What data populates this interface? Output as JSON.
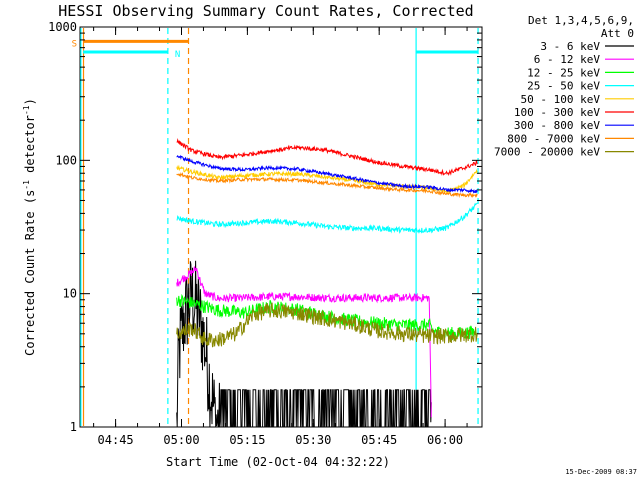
{
  "chart_data": {
    "type": "line",
    "title": "HESSI Observing Summary Count Rates, Corrected",
    "xlabel": "Start Time (02-Oct-04 04:32:22)",
    "ylabel_main": "Corrected Count Rate (s",
    "ylabel_sup1": "-1",
    "ylabel_mid": " detector",
    "ylabel_sup2": "-1",
    "ylabel_end": ")",
    "yscale": "log",
    "ylim": [
      1,
      1000
    ],
    "xlim_minutes": [
      4.5,
      96
    ],
    "x_start": "04:32:22",
    "x_ticks": [
      {
        "m": 12.6,
        "label": "04:45"
      },
      {
        "m": 27.6,
        "label": "05:00"
      },
      {
        "m": 42.6,
        "label": "05:15"
      },
      {
        "m": 57.6,
        "label": "05:30"
      },
      {
        "m": 72.6,
        "label": "05:45"
      },
      {
        "m": 87.6,
        "label": "06:00"
      }
    ],
    "y_ticks": [
      {
        "v": 1,
        "label": "1"
      },
      {
        "v": 10,
        "label": "10"
      },
      {
        "v": 100,
        "label": "100"
      },
      {
        "v": 1000,
        "label": "1000"
      }
    ],
    "legend_header": [
      "Det 1,3,4,5,6,9,",
      "Att 0"
    ],
    "legend_position": "right",
    "series": [
      {
        "name": "3 - 6 keV",
        "color": "#000000",
        "points": [
          [
            26.5,
            1.0
          ],
          [
            27,
            3.5
          ],
          [
            28,
            6
          ],
          [
            29,
            8
          ],
          [
            30,
            9.5
          ],
          [
            31,
            8
          ],
          [
            32,
            6
          ],
          [
            33,
            4
          ],
          [
            34,
            2.2
          ],
          [
            35,
            1.3
          ],
          [
            36,
            1.0
          ],
          [
            39,
            1.5
          ],
          [
            42,
            1.6
          ],
          [
            48,
            1.6
          ],
          [
            54,
            1.6
          ],
          [
            60,
            1.6
          ],
          [
            66,
            1.6
          ],
          [
            72,
            1.6
          ],
          [
            78,
            1.6
          ],
          [
            84,
            1.6
          ],
          [
            84.5,
            1.0
          ]
        ],
        "noise": 0.35
      },
      {
        "name": "6 - 12 keV",
        "color": "#ff00ff",
        "points": [
          [
            26.5,
            12
          ],
          [
            28,
            13
          ],
          [
            30,
            14.5
          ],
          [
            31,
            15.5
          ],
          [
            32,
            12
          ],
          [
            33,
            10
          ],
          [
            36,
            9.2
          ],
          [
            42,
            9.3
          ],
          [
            48,
            9.5
          ],
          [
            54,
            9.5
          ],
          [
            60,
            9.3
          ],
          [
            66,
            9.3
          ],
          [
            72,
            9.3
          ],
          [
            78,
            9.3
          ],
          [
            84,
            9.3
          ],
          [
            84.5,
            1.0
          ]
        ],
        "noise": 0.03
      },
      {
        "name": "12 - 25 keV",
        "color": "#00ff00",
        "points": [
          [
            26.5,
            9
          ],
          [
            30,
            8.5
          ],
          [
            36,
            7.5
          ],
          [
            42,
            7.2
          ],
          [
            48,
            8.0
          ],
          [
            54,
            7.6
          ],
          [
            60,
            6.8
          ],
          [
            66,
            6.3
          ],
          [
            72,
            6.0
          ],
          [
            78,
            5.8
          ],
          [
            84,
            5.8
          ],
          [
            85,
            5.2
          ],
          [
            90,
            5.0
          ],
          [
            95,
            5.2
          ]
        ],
        "noise": 0.05
      },
      {
        "name": "25 - 50 keV",
        "color": "#00ffff",
        "points": [
          [
            26.5,
            37
          ],
          [
            30,
            35
          ],
          [
            36,
            33
          ],
          [
            42,
            34
          ],
          [
            48,
            35
          ],
          [
            54,
            34
          ],
          [
            60,
            32
          ],
          [
            66,
            31
          ],
          [
            72,
            31
          ],
          [
            78,
            30
          ],
          [
            84,
            30
          ],
          [
            88,
            31
          ],
          [
            92,
            38
          ],
          [
            95,
            47
          ]
        ],
        "noise": 0.02
      },
      {
        "name": "50 - 100 keV",
        "color": "#ffcc00",
        "points": [
          [
            26.5,
            88
          ],
          [
            30,
            82
          ],
          [
            36,
            74
          ],
          [
            42,
            77
          ],
          [
            48,
            79
          ],
          [
            54,
            79
          ],
          [
            60,
            75
          ],
          [
            66,
            71
          ],
          [
            72,
            66
          ],
          [
            78,
            64
          ],
          [
            84,
            62
          ],
          [
            88,
            58
          ],
          [
            92,
            65
          ],
          [
            95,
            85
          ]
        ],
        "noise": 0.015
      },
      {
        "name": "100 - 300 keV",
        "color": "#ff0000",
        "points": [
          [
            26.5,
            140
          ],
          [
            30,
            118
          ],
          [
            36,
            105
          ],
          [
            42,
            110
          ],
          [
            48,
            118
          ],
          [
            54,
            125
          ],
          [
            60,
            120
          ],
          [
            66,
            108
          ],
          [
            72,
            97
          ],
          [
            78,
            90
          ],
          [
            84,
            85
          ],
          [
            88,
            80
          ],
          [
            92,
            88
          ],
          [
            95,
            96
          ]
        ],
        "noise": 0.015
      },
      {
        "name": "300 - 800 keV",
        "color": "#0000ff",
        "points": [
          [
            26.5,
            108
          ],
          [
            30,
            98
          ],
          [
            36,
            87
          ],
          [
            42,
            85
          ],
          [
            48,
            88
          ],
          [
            54,
            86
          ],
          [
            60,
            80
          ],
          [
            66,
            74
          ],
          [
            72,
            68
          ],
          [
            78,
            64
          ],
          [
            84,
            63
          ],
          [
            88,
            60
          ],
          [
            92,
            60
          ],
          [
            95,
            58
          ]
        ],
        "noise": 0.012
      },
      {
        "name": "800 - 7000 keV",
        "color": "#ff8800",
        "points": [
          [
            26.5,
            80
          ],
          [
            30,
            74
          ],
          [
            36,
            70
          ],
          [
            42,
            72
          ],
          [
            48,
            72
          ],
          [
            54,
            71
          ],
          [
            60,
            68
          ],
          [
            66,
            65
          ],
          [
            72,
            62
          ],
          [
            78,
            60
          ],
          [
            84,
            59
          ],
          [
            88,
            56
          ],
          [
            92,
            55
          ],
          [
            95,
            55
          ]
        ],
        "noise": 0.012
      },
      {
        "name": "7000 - 20000 keV",
        "color": "#888800",
        "points": [
          [
            26.5,
            5.0
          ],
          [
            30,
            5.5
          ],
          [
            33,
            4.5
          ],
          [
            36,
            4.5
          ],
          [
            40,
            5.0
          ],
          [
            44,
            7.0
          ],
          [
            48,
            7.5
          ],
          [
            54,
            7.2
          ],
          [
            60,
            6.5
          ],
          [
            66,
            6.0
          ],
          [
            72,
            5.3
          ],
          [
            78,
            5.0
          ],
          [
            84,
            4.8
          ],
          [
            88,
            4.8
          ],
          [
            92,
            4.9
          ],
          [
            95,
            5.0
          ]
        ],
        "noise": 0.06
      }
    ],
    "flag_markers": [
      {
        "label": "S",
        "color": "#ff8800",
        "m_start": 5.2,
        "m_end": 29.2,
        "value": 780
      },
      {
        "label": "N",
        "color": "#00ffff",
        "m_start": 5.2,
        "m_end": 24.5,
        "value": 650
      },
      {
        "label": "",
        "color": "#00ffff",
        "m_start": 81.0,
        "m_end": 95.1,
        "value": 650
      }
    ],
    "vertical_lines": [
      {
        "m": 4.7,
        "color": "#00ffff",
        "style": "solid"
      },
      {
        "m": 5.3,
        "color": "#ff8800",
        "style": "solid"
      },
      {
        "m": 24.5,
        "color": "#00ffff",
        "style": "dashed"
      },
      {
        "m": 29.2,
        "color": "#ff8800",
        "style": "dashed"
      },
      {
        "m": 81.0,
        "color": "#00ffff",
        "style": "solid"
      },
      {
        "m": 95.1,
        "color": "#00ffff",
        "style": "dashed"
      }
    ],
    "footer_stamp": "15-Dec-2009 08:37"
  }
}
